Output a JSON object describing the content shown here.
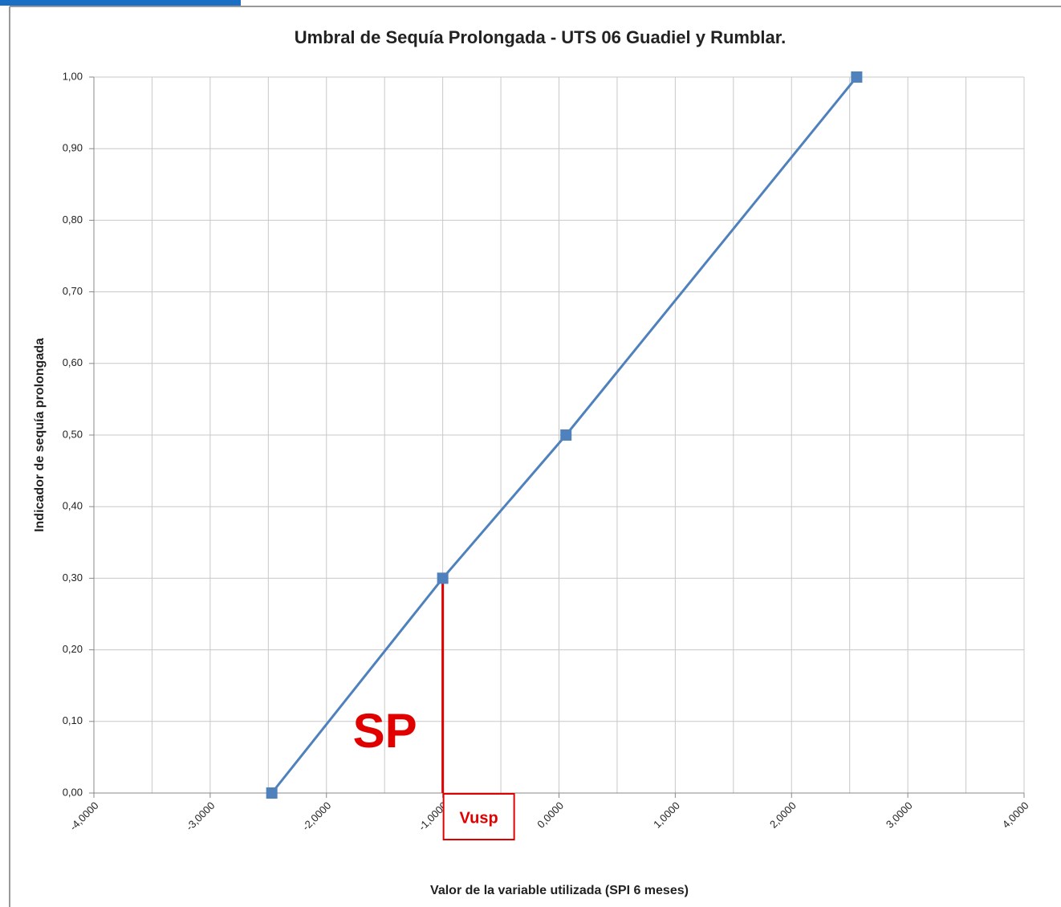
{
  "chart_data": {
    "type": "line",
    "title": "Umbral de Sequía Prolongada - UTS 06 Guadiel y Rumblar.",
    "x_label": "Valor de la variable utilizada (SPI 6 meses)",
    "y_label": "Indicador de sequía prolongada",
    "x": [
      -2.47,
      -1.0,
      0.06,
      2.56
    ],
    "series": [
      {
        "color": "#4f81bd",
        "values": [
          0,
          0.3,
          0.5,
          1.0
        ]
      }
    ],
    "xlim": [
      -4,
      4
    ],
    "ylim": [
      0,
      1
    ],
    "xticks": [
      {
        "value": -4,
        "label": "-4,0000"
      },
      {
        "value": -3,
        "label": "-3,0000"
      },
      {
        "value": -2,
        "label": "-2,0000"
      },
      {
        "value": -1,
        "label": "-1,0000"
      },
      {
        "value": 0,
        "label": "0,0000"
      },
      {
        "value": 1,
        "label": "1,0000"
      },
      {
        "value": 2,
        "label": "2,0000"
      },
      {
        "value": 3,
        "label": "3,0000"
      },
      {
        "value": 4,
        "label": "4,0000"
      }
    ],
    "x_minor_grid": [
      -3.5,
      -2.5,
      -1.5,
      -0.5,
      0.5,
      1.5,
      2.5,
      3.5
    ],
    "yticks": [
      {
        "value": 0,
        "label": "0,00"
      },
      {
        "value": 0.1,
        "label": "0,10"
      },
      {
        "value": 0.2,
        "label": "0,20"
      },
      {
        "value": 0.3,
        "label": "0,30"
      },
      {
        "value": 0.4,
        "label": "0,40"
      },
      {
        "value": 0.5,
        "label": "0,50"
      },
      {
        "value": 0.6,
        "label": "0,60"
      },
      {
        "value": 0.7,
        "label": "0,70"
      },
      {
        "value": 0.8,
        "label": "0,80"
      },
      {
        "value": 0.9,
        "label": "0,90"
      },
      {
        "value": 1,
        "label": "1,00"
      }
    ],
    "grid": true,
    "threshold": {
      "x": -1.0,
      "y": 0.3,
      "label": "Vusp",
      "color": "#e00000"
    },
    "region_label": "SP"
  }
}
